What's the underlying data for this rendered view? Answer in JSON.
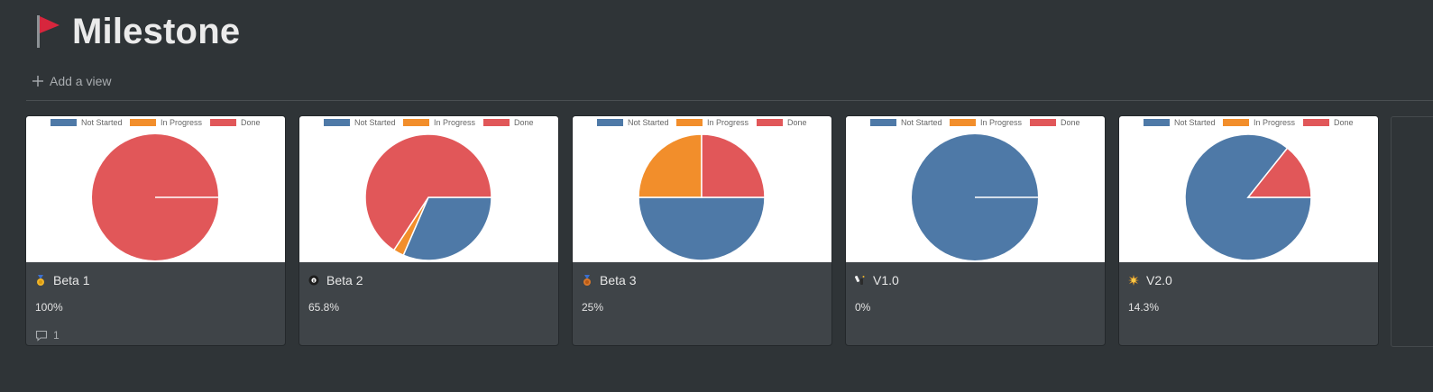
{
  "page": {
    "title": "Milestone"
  },
  "toolbar": {
    "add_view_label": "Add a view"
  },
  "colors": {
    "not_started": "#4e79a7",
    "in_progress": "#f28e2b",
    "done": "#e15759"
  },
  "cards": [
    {
      "name": "Beta 1",
      "emoji": "medal-1st-icon",
      "percent": "100%",
      "comments": "1"
    },
    {
      "name": "Beta 2",
      "emoji": "8-ball-icon",
      "percent": "65.8%",
      "comments": ""
    },
    {
      "name": "Beta 3",
      "emoji": "medal-3rd-icon",
      "percent": "25%",
      "comments": ""
    },
    {
      "name": "V1.0",
      "emoji": "champagne-icon",
      "percent": "0%",
      "comments": ""
    },
    {
      "name": "V2.0",
      "emoji": "sun-icon",
      "percent": "14.3%",
      "comments": ""
    }
  ],
  "chart_data": [
    {
      "type": "pie",
      "title": "Beta 1",
      "labels": [
        "Not Started",
        "In Progress",
        "Done"
      ],
      "values": [
        0,
        0,
        100
      ]
    },
    {
      "type": "pie",
      "title": "Beta 2",
      "labels": [
        "Not Started",
        "In Progress",
        "Done"
      ],
      "values": [
        31.5,
        2.7,
        65.8
      ]
    },
    {
      "type": "pie",
      "title": "Beta 3",
      "labels": [
        "Not Started",
        "In Progress",
        "Done"
      ],
      "values": [
        50,
        25,
        25
      ]
    },
    {
      "type": "pie",
      "title": "V1.0",
      "labels": [
        "Not Started",
        "In Progress",
        "Done"
      ],
      "values": [
        100,
        0,
        0
      ]
    },
    {
      "type": "pie",
      "title": "V2.0",
      "labels": [
        "Not Started",
        "In Progress",
        "Done"
      ],
      "values": [
        85.7,
        0,
        14.3
      ]
    }
  ]
}
